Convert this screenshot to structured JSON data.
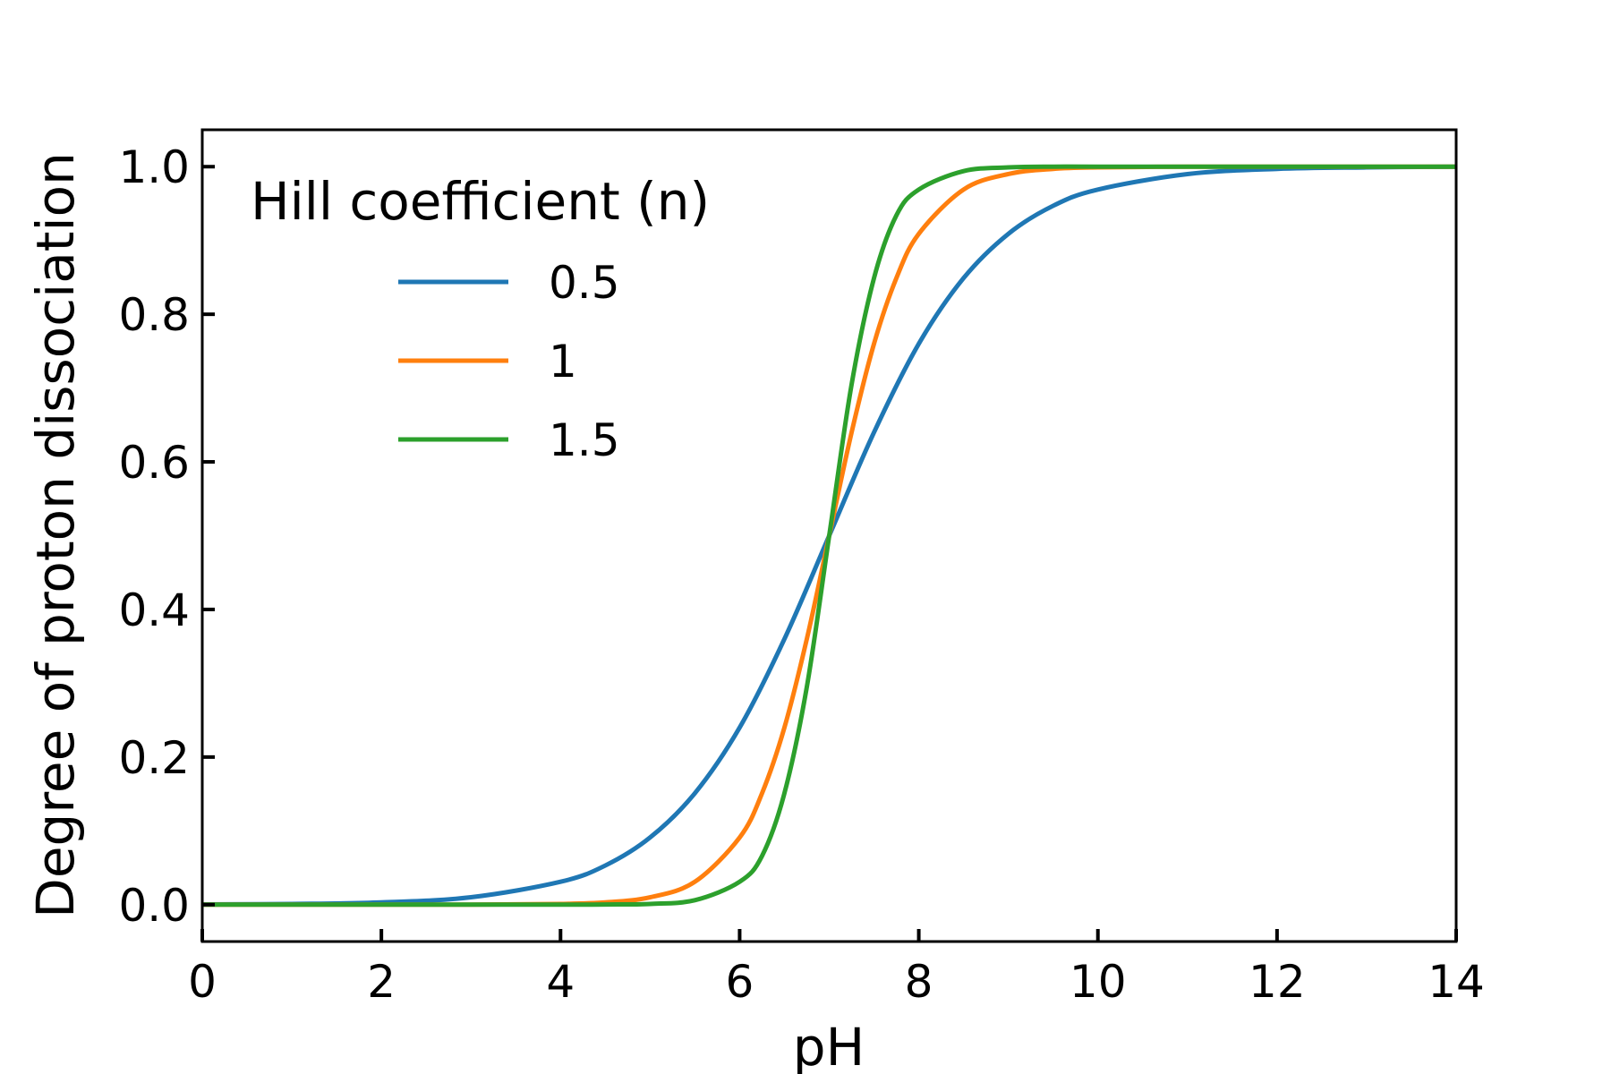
{
  "chart_data": {
    "type": "line",
    "xlabel": "pH",
    "ylabel": "Degree of proton dissociation",
    "xlim": [
      0,
      14
    ],
    "ylim": [
      -0.05,
      1.05
    ],
    "xticks": [
      0,
      2,
      4,
      6,
      8,
      10,
      12,
      14
    ],
    "xtick_labels": [
      "0",
      "2",
      "4",
      "6",
      "8",
      "10",
      "12",
      "14"
    ],
    "yticks": [
      0.0,
      0.2,
      0.4,
      0.6,
      0.8,
      1.0
    ],
    "ytick_labels": [
      "0.0",
      "0.2",
      "0.4",
      "0.6",
      "0.8",
      "1.0"
    ],
    "grid": false,
    "legend": {
      "title": "Hill coefficient (n)",
      "placement": "upper-left"
    },
    "series": [
      {
        "name": "0.5",
        "color": "#1f77b4",
        "x": [
          0,
          1,
          2,
          3,
          4,
          4.5,
          5,
          5.5,
          6,
          6.5,
          7,
          7.5,
          8,
          8.5,
          9,
          9.5,
          10,
          11,
          12,
          13,
          14
        ],
        "y": [
          0.0003,
          0.001,
          0.003,
          0.01,
          0.031,
          0.053,
          0.091,
          0.151,
          0.24,
          0.36,
          0.5,
          0.64,
          0.76,
          0.849,
          0.909,
          0.947,
          0.969,
          0.99,
          0.997,
          0.999,
          1.0
        ]
      },
      {
        "name": "1",
        "color": "#ff7f0e",
        "x": [
          0,
          1,
          2,
          3,
          4,
          4.5,
          5,
          5.5,
          6,
          6.25,
          6.5,
          6.75,
          7,
          7.25,
          7.5,
          7.75,
          8,
          8.5,
          9,
          9.5,
          10,
          11,
          12,
          13,
          14
        ],
        "y": [
          0.0,
          0.0,
          0.0,
          0.0001,
          0.001,
          0.003,
          0.01,
          0.031,
          0.091,
          0.151,
          0.24,
          0.36,
          0.5,
          0.64,
          0.76,
          0.849,
          0.909,
          0.969,
          0.99,
          0.997,
          0.999,
          1.0,
          1.0,
          1.0,
          1.0
        ]
      },
      {
        "name": "1.5",
        "color": "#2ca02c",
        "x": [
          0,
          1,
          2,
          3,
          4,
          4.5,
          5,
          5.5,
          6,
          6.25,
          6.5,
          6.75,
          7,
          7.25,
          7.5,
          7.75,
          8,
          8.5,
          9,
          9.5,
          10,
          11,
          12,
          13,
          14
        ],
        "y": [
          0.0,
          0.0,
          0.0,
          0.0,
          0.0,
          0.0002,
          0.001,
          0.006,
          0.031,
          0.066,
          0.151,
          0.295,
          0.5,
          0.705,
          0.849,
          0.934,
          0.969,
          0.994,
          0.999,
          1.0,
          1.0,
          1.0,
          1.0,
          1.0,
          1.0
        ]
      }
    ]
  }
}
